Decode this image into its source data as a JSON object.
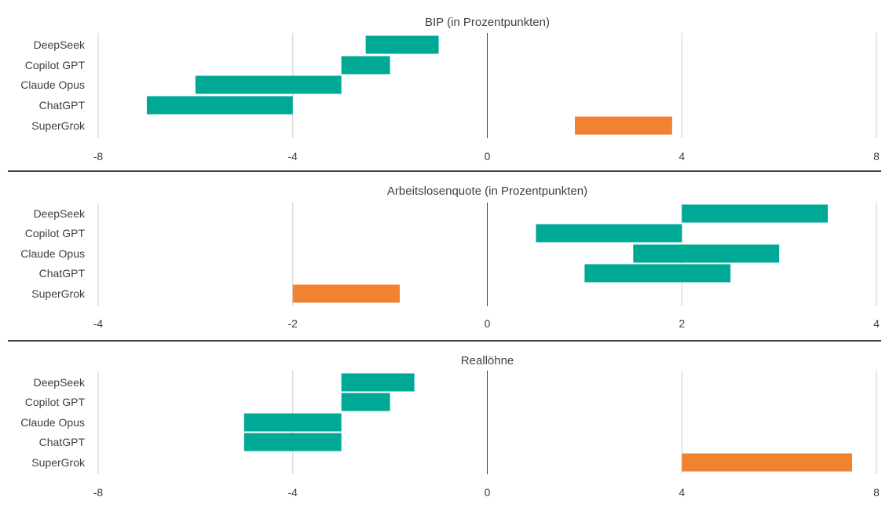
{
  "colors": {
    "model": "#00a896",
    "supergrok": "#f08232",
    "grid": "#d9d9d9",
    "zero": "#404040",
    "separator": "#000000"
  },
  "chart_data": [
    {
      "type": "bar",
      "title": "BIP (in Prozentpunkten)",
      "categories": [
        "DeepSeek",
        "Copilot GPT",
        "Claude Opus",
        "ChatGPT",
        "SuperGrok"
      ],
      "ranges": [
        [
          -2.5,
          -1.0
        ],
        [
          -3.0,
          -2.0
        ],
        [
          -6.0,
          -3.0
        ],
        [
          -7.0,
          -4.0
        ],
        [
          1.8,
          3.8
        ]
      ],
      "xlim": [
        -8,
        8
      ],
      "ticks": [
        -8,
        -4,
        0,
        4,
        8
      ],
      "tick_labels": [
        "-8",
        "-4",
        "0",
        "4",
        "8"
      ],
      "grid": true
    },
    {
      "type": "bar",
      "title": "Arbeitslosenquote (in Prozentpunkten)",
      "categories": [
        "DeepSeek",
        "Copilot GPT",
        "Claude Opus",
        "ChatGPT",
        "SuperGrok"
      ],
      "ranges": [
        [
          2.0,
          3.5
        ],
        [
          0.5,
          2.0
        ],
        [
          1.5,
          3.0
        ],
        [
          1.0,
          2.5
        ],
        [
          -2.0,
          -0.9
        ]
      ],
      "xlim": [
        -4,
        4
      ],
      "ticks": [
        -4,
        -2,
        0,
        2,
        4
      ],
      "tick_labels": [
        "-4",
        "-2",
        "0",
        "2",
        "4"
      ],
      "grid": true
    },
    {
      "type": "bar",
      "title": "Reallöhne",
      "categories": [
        "DeepSeek",
        "Copilot GPT",
        "Claude Opus",
        "ChatGPT",
        "SuperGrok"
      ],
      "ranges": [
        [
          -3.0,
          -1.5
        ],
        [
          -3.0,
          -2.0
        ],
        [
          -5.0,
          -3.0
        ],
        [
          -5.0,
          -3.0
        ],
        [
          4.0,
          7.5
        ]
      ],
      "xlim": [
        -8,
        8
      ],
      "ticks": [
        -8,
        -4,
        0,
        4,
        8
      ],
      "tick_labels": [
        "-8",
        "-4",
        "0",
        "4",
        "8"
      ],
      "grid": true
    }
  ]
}
